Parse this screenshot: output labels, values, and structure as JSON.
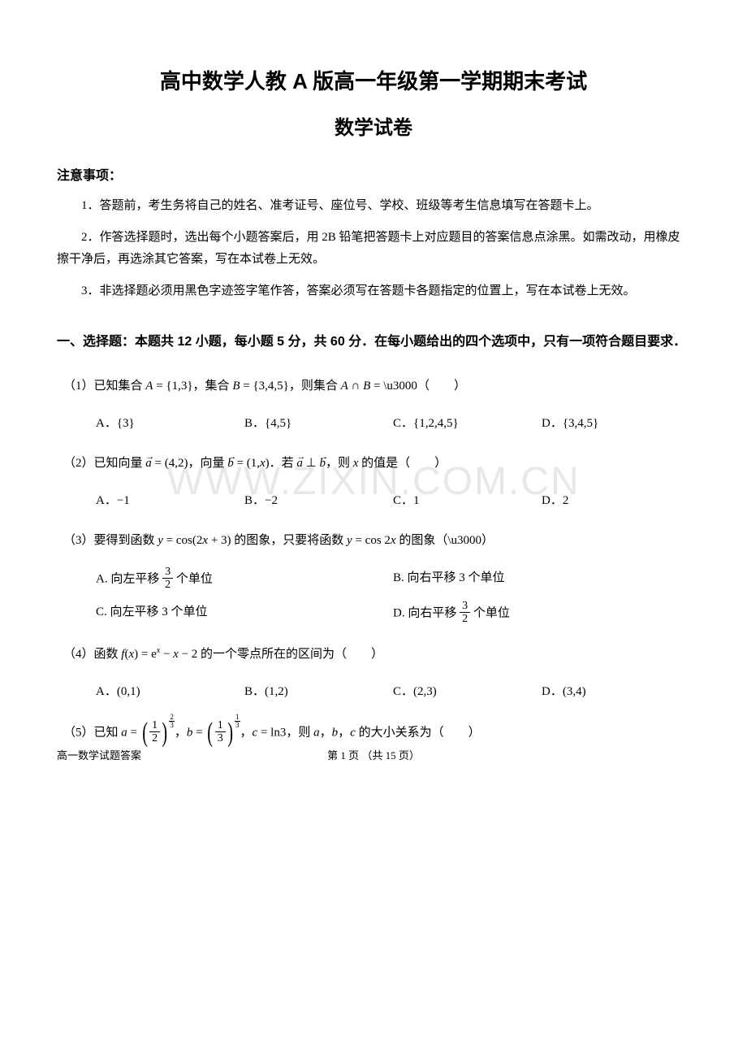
{
  "title_main": "高中数学人教 A 版高一年级第一学期期末考试",
  "title_sub": "数学试卷",
  "notice_header": "注意事项：",
  "notices": [
    "1．答题前，考生务将自己的姓名、准考证号、座位号、学校、班级等考生信息填写在答题卡上。",
    "2．作答选择题时，选出每个小题答案后，用 2B 铅笔把答题卡上对应题目的答案信息点涂黑。如需改动，用橡皮擦干净后，再选涂其它答案，写在本试卷上无效。",
    "3．非选择题必须用黑色字迹签字笔作答，答案必须写在答题卡各题指定的位置上，写在本试卷上无效。"
  ],
  "section1_header": "一、选择题：本题共 12 小题，每小题 5 分，共 60 分．在每小题给出的四个选项中，只有一项符合题目要求．",
  "q1": {
    "stem_pre": "（1）已知集合 ",
    "stem_mid": "，集合 ",
    "stem_post": "，则集合 ",
    "blank": "（　　）",
    "A": "A．{3}",
    "B": "B．{4,5}",
    "C": "C．{1,2,4,5}",
    "D": "D．{3,4,5}"
  },
  "q2": {
    "stem_pre": "（2）已知向量 ",
    "stem_mid": "，向量 ",
    "stem_mid2": "．若 ",
    "stem_post": "，则 ",
    "stem_end": " 的值是（　　）",
    "A": "A．−1",
    "B": "B．−2",
    "C": "C．1",
    "D": "D．2"
  },
  "q3": {
    "stem": "（3）要得到函数 y = cos(2x + 3) 的图象，只要将函数 y = cos 2x 的图象（　）",
    "A_pre": "A. 向左平移 ",
    "A_post": " 个单位",
    "B": "B. 向右平移 3 个单位",
    "C": "C. 向左平移 3 个单位",
    "D_pre": "D. 向右平移 ",
    "D_post": " 个单位"
  },
  "q4": {
    "stem_pre": "（4）函数 ",
    "stem_post": " 的一个零点所在的区间为（　　）",
    "A": "A．(0,1)",
    "B": "B．(1,2)",
    "C": "C．(2,3)",
    "D": "D．(3,4)"
  },
  "q5": {
    "stem_pre": "（5）已知 ",
    "stem_mid1": "，",
    "stem_mid2": "，",
    "stem_mid3": "，则 ",
    "stem_post": " 的大小关系为（　　）"
  },
  "footer_left": "高一数学试题答案",
  "footer_center": "第 1 页 （共 15 页）",
  "watermark": "WWW.ZIXIN.COM.CN",
  "colors": {
    "text": "#000000",
    "bg": "#ffffff",
    "watermark": "#e8e8e8"
  }
}
